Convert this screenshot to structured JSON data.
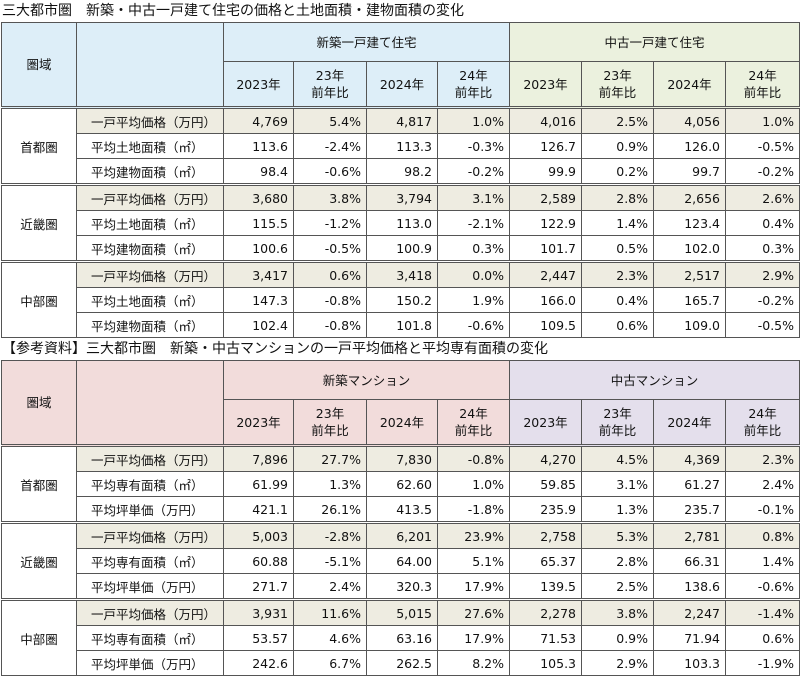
{
  "tables": [
    {
      "title": "三大都市圏　新築・中古一戸建て住宅の価格と土地面積・建物面積の変化",
      "header": {
        "region": "圏域",
        "groups": [
          "新築一戸建て住宅",
          "中古一戸建て住宅"
        ],
        "subheaders": [
          "2023年",
          "23年\n前年比",
          "2024年",
          "24年\n前年比"
        ]
      },
      "regions": [
        {
          "name": "首都圏",
          "rows": [
            {
              "label": "一戸平均価格（万円）",
              "cells": [
                "4,769",
                "5.4%",
                "4,817",
                "1.0%",
                "4,016",
                "2.5%",
                "4,056",
                "1.0%"
              ]
            },
            {
              "label": "平均土地面積（㎡）",
              "cells": [
                "113.6",
                "-2.4%",
                "113.3",
                "-0.3%",
                "126.7",
                "0.9%",
                "126.0",
                "-0.5%"
              ]
            },
            {
              "label": "平均建物面積（㎡）",
              "cells": [
                "98.4",
                "-0.6%",
                "98.2",
                "-0.2%",
                "99.9",
                "0.2%",
                "99.7",
                "-0.2%"
              ]
            }
          ]
        },
        {
          "name": "近畿圏",
          "rows": [
            {
              "label": "一戸平均価格（万円）",
              "cells": [
                "3,680",
                "3.8%",
                "3,794",
                "3.1%",
                "2,589",
                "2.8%",
                "2,656",
                "2.6%"
              ]
            },
            {
              "label": "平均土地面積（㎡）",
              "cells": [
                "115.5",
                "-1.2%",
                "113.0",
                "-2.1%",
                "122.9",
                "1.4%",
                "123.4",
                "0.4%"
              ]
            },
            {
              "label": "平均建物面積（㎡）",
              "cells": [
                "100.6",
                "-0.5%",
                "100.9",
                "0.3%",
                "101.7",
                "0.5%",
                "102.0",
                "0.3%"
              ]
            }
          ]
        },
        {
          "name": "中部圏",
          "rows": [
            {
              "label": "一戸平均価格（万円）",
              "cells": [
                "3,417",
                "0.6%",
                "3,418",
                "0.0%",
                "2,447",
                "2.3%",
                "2,517",
                "2.9%"
              ]
            },
            {
              "label": "平均土地面積（㎡）",
              "cells": [
                "147.3",
                "-0.8%",
                "150.2",
                "1.9%",
                "166.0",
                "0.4%",
                "165.7",
                "-0.2%"
              ]
            },
            {
              "label": "平均建物面積（㎡）",
              "cells": [
                "102.4",
                "-0.8%",
                "101.8",
                "-0.6%",
                "109.5",
                "0.6%",
                "109.0",
                "-0.5%"
              ]
            }
          ]
        }
      ]
    },
    {
      "title": "【参考資料】三大都市圏　新築・中古マンションの一戸平均価格と平均専有面積の変化",
      "header": {
        "region": "圏域",
        "groups": [
          "新築マンション",
          "中古マンション"
        ],
        "subheaders": [
          "2023年",
          "23年\n前年比",
          "2024年",
          "24年\n前年比"
        ]
      },
      "regions": [
        {
          "name": "首都圏",
          "rows": [
            {
              "label": "一戸平均価格（万円）",
              "cells": [
                "7,896",
                "27.7%",
                "7,830",
                "-0.8%",
                "4,270",
                "4.5%",
                "4,369",
                "2.3%"
              ]
            },
            {
              "label": "平均専有面積（㎡）",
              "cells": [
                "61.99",
                "1.3%",
                "62.60",
                "1.0%",
                "59.85",
                "3.1%",
                "61.27",
                "2.4%"
              ]
            },
            {
              "label": "平均坪単価（万円）",
              "cells": [
                "421.1",
                "26.1%",
                "413.5",
                "-1.8%",
                "235.9",
                "1.3%",
                "235.7",
                "-0.1%"
              ]
            }
          ]
        },
        {
          "name": "近畿圏",
          "rows": [
            {
              "label": "一戸平均価格（万円）",
              "cells": [
                "5,003",
                "-2.8%",
                "6,201",
                "23.9%",
                "2,758",
                "5.3%",
                "2,781",
                "0.8%"
              ]
            },
            {
              "label": "平均専有面積（㎡）",
              "cells": [
                "60.88",
                "-5.1%",
                "64.00",
                "5.1%",
                "65.37",
                "2.8%",
                "66.31",
                "1.4%"
              ]
            },
            {
              "label": "平均坪単価（万円）",
              "cells": [
                "271.7",
                "2.4%",
                "320.3",
                "17.9%",
                "139.5",
                "2.5%",
                "138.6",
                "-0.6%"
              ]
            }
          ]
        },
        {
          "name": "中部圏",
          "rows": [
            {
              "label": "一戸平均価格（万円）",
              "cells": [
                "3,931",
                "11.6%",
                "5,015",
                "27.6%",
                "2,278",
                "3.8%",
                "2,247",
                "-1.4%"
              ]
            },
            {
              "label": "平均専有面積（㎡）",
              "cells": [
                "53.57",
                "4.6%",
                "63.16",
                "17.9%",
                "71.53",
                "0.9%",
                "71.94",
                "0.6%"
              ]
            },
            {
              "label": "平均坪単価（万円）",
              "cells": [
                "242.6",
                "6.7%",
                "262.5",
                "8.2%",
                "105.3",
                "2.9%",
                "103.3",
                "-1.9%"
              ]
            }
          ]
        }
      ]
    }
  ]
}
